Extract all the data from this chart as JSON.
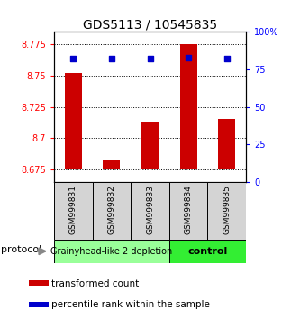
{
  "title": "GDS5113 / 10545835",
  "samples": [
    "GSM999831",
    "GSM999832",
    "GSM999833",
    "GSM999834",
    "GSM999835"
  ],
  "transformed_counts": [
    8.752,
    8.683,
    8.713,
    8.775,
    8.715
  ],
  "percentile_ranks": [
    82,
    82,
    82,
    83,
    82
  ],
  "ylim_left": [
    8.665,
    8.785
  ],
  "ylim_right": [
    0,
    100
  ],
  "yticks_left": [
    8.675,
    8.7,
    8.725,
    8.75,
    8.775
  ],
  "yticks_right": [
    0,
    25,
    50,
    75,
    100
  ],
  "bar_color": "#cc0000",
  "dot_color": "#0000cc",
  "bar_bottom": 8.675,
  "group1_label": "Grainyhead-like 2 depletion",
  "group1_color": "#99ff99",
  "group1_samples": [
    0,
    1,
    2
  ],
  "group2_label": "control",
  "group2_color": "#33ee33",
  "group2_samples": [
    3,
    4
  ],
  "protocol_label": "protocol",
  "legend_bar_label": "transformed count",
  "legend_dot_label": "percentile rank within the sample",
  "title_fontsize": 10,
  "tick_fontsize": 7,
  "sample_fontsize": 6.5,
  "group_fontsize": 7,
  "legend_fontsize": 7.5
}
